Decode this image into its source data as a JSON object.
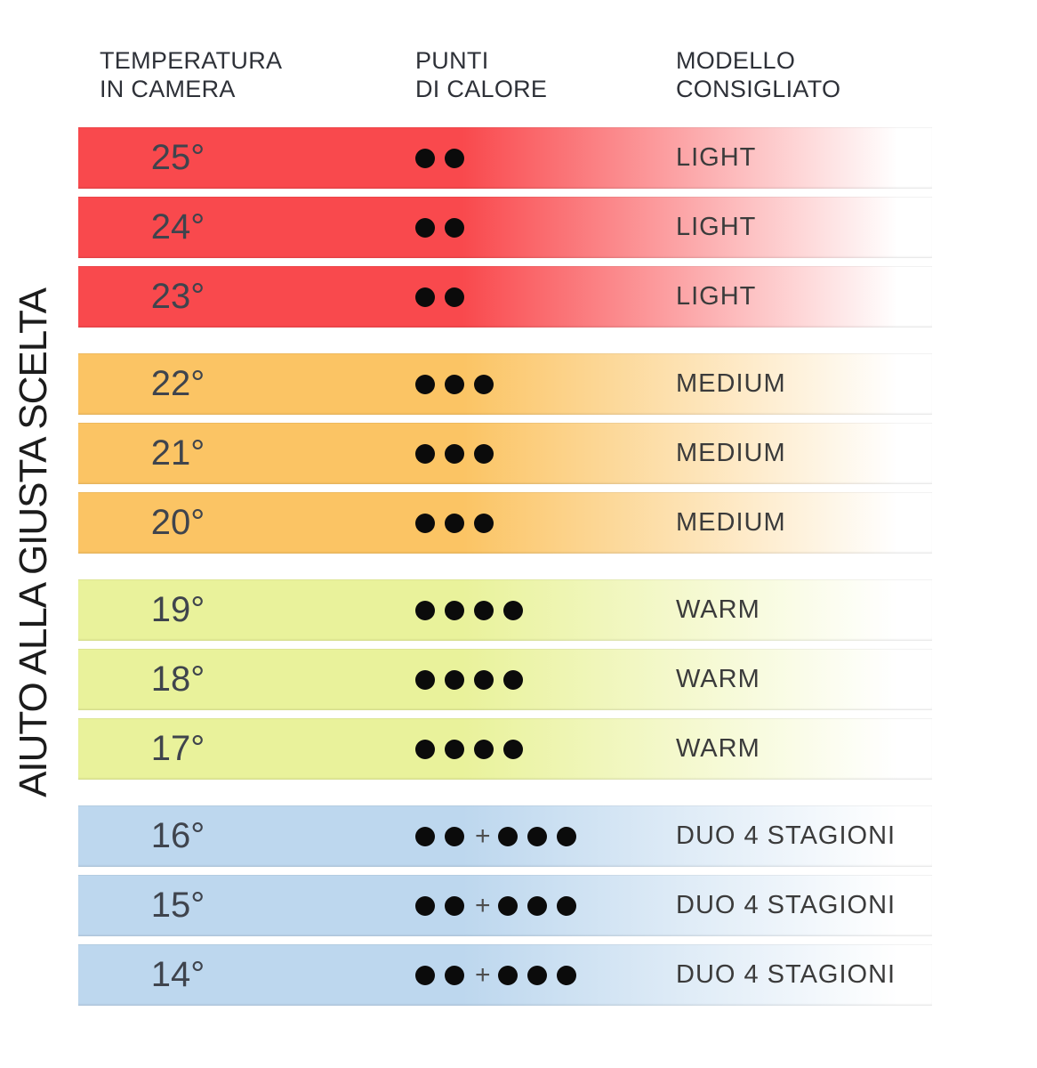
{
  "side_label": "AIUTO ALLA GIUSTA SCELTA",
  "headers": {
    "temperature": {
      "line1": "TEMPERATURA",
      "line2": "IN CAMERA"
    },
    "heat": {
      "line1": "PUNTI",
      "line2": "DI CALORE"
    },
    "model": {
      "line1": "MODELLO",
      "line2": "CONSIGLIATO"
    }
  },
  "plus_symbol": "+",
  "colors": {
    "red": "#F9494D",
    "orange": "#FBC464",
    "yellow": "#E9F29B",
    "blue": "#BDD7EE"
  },
  "rows": [
    {
      "temperature": "25°",
      "dots": "2",
      "model": "LIGHT",
      "group": "red"
    },
    {
      "temperature": "24°",
      "dots": "2",
      "model": "LIGHT",
      "group": "red"
    },
    {
      "temperature": "23°",
      "dots": "2",
      "model": "LIGHT",
      "group": "red"
    },
    {
      "temperature": "22°",
      "dots": "3",
      "model": "MEDIUM",
      "group": "orange"
    },
    {
      "temperature": "21°",
      "dots": "3",
      "model": "MEDIUM",
      "group": "orange"
    },
    {
      "temperature": "20°",
      "dots": "3",
      "model": "MEDIUM",
      "group": "orange"
    },
    {
      "temperature": "19°",
      "dots": "4",
      "model": "WARM",
      "group": "yellow"
    },
    {
      "temperature": "18°",
      "dots": "4",
      "model": "WARM",
      "group": "yellow"
    },
    {
      "temperature": "17°",
      "dots": "4",
      "model": "WARM",
      "group": "yellow"
    },
    {
      "temperature": "16°",
      "dots": "2+3",
      "model": "DUO 4 STAGIONI",
      "group": "blue"
    },
    {
      "temperature": "15°",
      "dots": "2+3",
      "model": "DUO 4 STAGIONI",
      "group": "blue"
    },
    {
      "temperature": "14°",
      "dots": "2+3",
      "model": "DUO 4 STAGIONI",
      "group": "blue"
    }
  ],
  "chart_data": {
    "type": "table",
    "title": "AIUTO ALLA GIUSTA SCELTA",
    "columns": [
      "TEMPERATURA IN CAMERA",
      "PUNTI DI CALORE",
      "MODELLO CONSIGLIATO"
    ],
    "rows": [
      [
        "25°",
        "2",
        "LIGHT"
      ],
      [
        "24°",
        "2",
        "LIGHT"
      ],
      [
        "23°",
        "2",
        "LIGHT"
      ],
      [
        "22°",
        "3",
        "MEDIUM"
      ],
      [
        "21°",
        "3",
        "MEDIUM"
      ],
      [
        "20°",
        "3",
        "MEDIUM"
      ],
      [
        "19°",
        "4",
        "WARM"
      ],
      [
        "18°",
        "4",
        "WARM"
      ],
      [
        "17°",
        "4",
        "WARM"
      ],
      [
        "16°",
        "2+3",
        "DUO 4 STAGIONI"
      ],
      [
        "15°",
        "2+3",
        "DUO 4 STAGIONI"
      ],
      [
        "14°",
        "2+3",
        "DUO 4 STAGIONI"
      ]
    ],
    "groups": [
      {
        "model": "LIGHT",
        "temperatures": [
          "25°",
          "24°",
          "23°"
        ],
        "heat_points": "2",
        "color": "#F9494D"
      },
      {
        "model": "MEDIUM",
        "temperatures": [
          "22°",
          "21°",
          "20°"
        ],
        "heat_points": "3",
        "color": "#FBC464"
      },
      {
        "model": "WARM",
        "temperatures": [
          "19°",
          "18°",
          "17°"
        ],
        "heat_points": "4",
        "color": "#E9F29B"
      },
      {
        "model": "DUO 4 STAGIONI",
        "temperatures": [
          "16°",
          "15°",
          "14°"
        ],
        "heat_points": "2+3",
        "color": "#BDD7EE"
      }
    ]
  }
}
